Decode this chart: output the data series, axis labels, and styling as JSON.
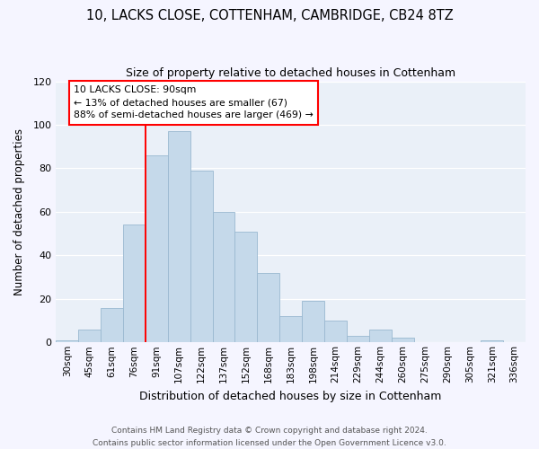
{
  "title": "10, LACKS CLOSE, COTTENHAM, CAMBRIDGE, CB24 8TZ",
  "subtitle": "Size of property relative to detached houses in Cottenham",
  "xlabel": "Distribution of detached houses by size in Cottenham",
  "ylabel": "Number of detached properties",
  "bar_color": "#c5d9ea",
  "bar_edge_color": "#9ab8d0",
  "background_color": "#eaf0f8",
  "fig_background": "#f5f5ff",
  "grid_color": "#ffffff",
  "categories": [
    "30sqm",
    "45sqm",
    "61sqm",
    "76sqm",
    "91sqm",
    "107sqm",
    "122sqm",
    "137sqm",
    "152sqm",
    "168sqm",
    "183sqm",
    "198sqm",
    "214sqm",
    "229sqm",
    "244sqm",
    "260sqm",
    "275sqm",
    "290sqm",
    "305sqm",
    "321sqm",
    "336sqm"
  ],
  "values": [
    1,
    6,
    16,
    54,
    86,
    97,
    79,
    60,
    51,
    32,
    12,
    19,
    10,
    3,
    6,
    2,
    0,
    0,
    0,
    1,
    0
  ],
  "ylim": [
    0,
    120
  ],
  "yticks": [
    0,
    20,
    40,
    60,
    80,
    100,
    120
  ],
  "vline_index": 4,
  "annotation_title": "10 LACKS CLOSE: 90sqm",
  "annotation_line1": "← 13% of detached houses are smaller (67)",
  "annotation_line2": "88% of semi-detached houses are larger (469) →",
  "footer_line1": "Contains HM Land Registry data © Crown copyright and database right 2024.",
  "footer_line2": "Contains public sector information licensed under the Open Government Licence v3.0."
}
